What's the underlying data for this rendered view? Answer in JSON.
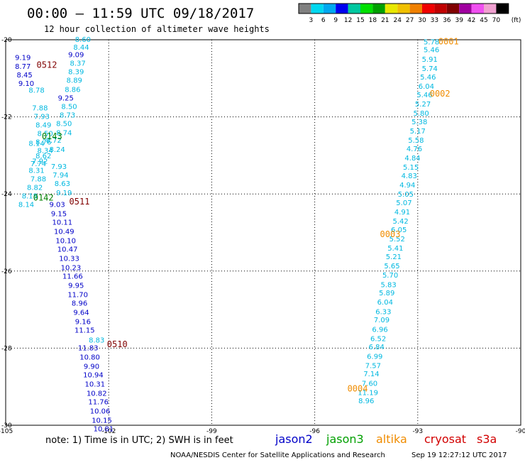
{
  "header": {
    "title": "00:00 – 11:59 UTC 09/18/2017",
    "subtitle": "12 hour collection of altimeter wave heights"
  },
  "colorbar": {
    "unit": "(ft)",
    "labels": [
      "3",
      "6",
      "9",
      "12",
      "15",
      "18",
      "21",
      "24",
      "27",
      "30",
      "33",
      "36",
      "39",
      "42",
      "45",
      "70"
    ],
    "colors": [
      "#808080",
      "#00d8f0",
      "#00a8f0",
      "#0000f0",
      "#00c8a0",
      "#00e000",
      "#00a000",
      "#e8e800",
      "#f0c000",
      "#f08000",
      "#f00000",
      "#c00000",
      "#800000",
      "#a000a0",
      "#f050f0",
      "#f0a0d0",
      "#000000"
    ]
  },
  "footnote": {
    "note": "note:  1) Time is in UTC;  2) SWH is in feet",
    "missions": [
      {
        "name": "jason2",
        "color": "#0000c8"
      },
      {
        "name": "jason3",
        "color": "#00a000"
      },
      {
        "name": "altika",
        "color": "#f08c00"
      },
      {
        "name": "cryosat",
        "color": "#d20000"
      },
      {
        "name": "s3a",
        "color": "#d20000"
      }
    ],
    "credit": "NOAA/NESDIS Center for Satellite Applications and Research",
    "timestamp": "Sep 19 12:27:12 UTC 2017"
  },
  "chart_data": {
    "type": "scatter",
    "xlim": [
      -105,
      -90
    ],
    "ylim": [
      -30,
      -20
    ],
    "x_ticks": [
      "-105",
      "-102",
      "-99",
      "-96",
      "-93",
      "-90"
    ],
    "y_ticks": [
      "-20",
      "-22",
      "-24",
      "-26",
      "-28",
      "-30"
    ],
    "grid": true,
    "passes": [
      {
        "label": "0001",
        "lon": -92.4,
        "lat": -20.05,
        "color": "#f08c00"
      },
      {
        "label": "0002",
        "lon": -92.65,
        "lat": -21.4,
        "color": "#f08c00"
      },
      {
        "label": "0003",
        "lon": -94.1,
        "lat": -25.05,
        "color": "#f08c00"
      },
      {
        "label": "0004",
        "lon": -95.05,
        "lat": -29.05,
        "color": "#f08c00"
      },
      {
        "label": "0512",
        "lon": -104.1,
        "lat": -20.65,
        "color": "#800000"
      },
      {
        "label": "0143",
        "lon": -103.95,
        "lat": -22.5,
        "color": "#008000"
      },
      {
        "label": "0142",
        "lon": -104.2,
        "lat": -24.1,
        "color": "#008000"
      },
      {
        "label": "0511",
        "lon": -103.15,
        "lat": -24.2,
        "color": "#800000"
      },
      {
        "label": "0510",
        "lon": -102.05,
        "lat": -27.9,
        "color": "#800000"
      }
    ],
    "series": [
      {
        "color": "#00b8e0",
        "points": [
          {
            "lon": -92.6,
            "lat": -20.05,
            "v": "5.78"
          },
          {
            "lon": -92.6,
            "lat": -20.25,
            "v": "5.46"
          },
          {
            "lon": -92.65,
            "lat": -20.5,
            "v": "5.91"
          },
          {
            "lon": -92.65,
            "lat": -20.74,
            "v": "5.74"
          },
          {
            "lon": -92.7,
            "lat": -20.96,
            "v": "5.46"
          },
          {
            "lon": -92.75,
            "lat": -21.2,
            "v": "6.04"
          },
          {
            "lon": -92.8,
            "lat": -21.42,
            "v": "5.46"
          },
          {
            "lon": -92.85,
            "lat": -21.66,
            "v": "5.27"
          },
          {
            "lon": -92.9,
            "lat": -21.9,
            "v": "5.80"
          },
          {
            "lon": -92.95,
            "lat": -22.12,
            "v": "5.38"
          },
          {
            "lon": -93.0,
            "lat": -22.36,
            "v": "5.17"
          },
          {
            "lon": -93.05,
            "lat": -22.6,
            "v": "5.58"
          },
          {
            "lon": -93.1,
            "lat": -22.82,
            "v": "4.76"
          },
          {
            "lon": -93.15,
            "lat": -23.06,
            "v": "4.84"
          },
          {
            "lon": -93.2,
            "lat": -23.3,
            "v": "5.15"
          },
          {
            "lon": -93.25,
            "lat": -23.52,
            "v": "4.83"
          },
          {
            "lon": -93.3,
            "lat": -23.76,
            "v": "4.94"
          },
          {
            "lon": -93.35,
            "lat": -24.0,
            "v": "5.05"
          },
          {
            "lon": -93.4,
            "lat": -24.22,
            "v": "5.07"
          },
          {
            "lon": -93.45,
            "lat": -24.46,
            "v": "4.91"
          },
          {
            "lon": -93.5,
            "lat": -24.7,
            "v": "5.42"
          },
          {
            "lon": -93.55,
            "lat": -24.92,
            "v": "6.05"
          },
          {
            "lon": -93.6,
            "lat": -25.16,
            "v": "5.52"
          },
          {
            "lon": -93.65,
            "lat": -25.4,
            "v": "5.41"
          },
          {
            "lon": -93.7,
            "lat": -25.62,
            "v": "5.21"
          },
          {
            "lon": -93.75,
            "lat": -25.86,
            "v": "5.65"
          },
          {
            "lon": -93.8,
            "lat": -26.1,
            "v": "5.70"
          },
          {
            "lon": -93.85,
            "lat": -26.34,
            "v": "5.83"
          },
          {
            "lon": -93.9,
            "lat": -26.56,
            "v": "5.89"
          },
          {
            "lon": -93.95,
            "lat": -26.8,
            "v": "6.04"
          },
          {
            "lon": -94.0,
            "lat": -27.04,
            "v": "6.33"
          },
          {
            "lon": -94.05,
            "lat": -27.26,
            "v": "7.09"
          },
          {
            "lon": -94.1,
            "lat": -27.5,
            "v": "6.96"
          },
          {
            "lon": -94.15,
            "lat": -27.74,
            "v": "6.52"
          },
          {
            "lon": -94.2,
            "lat": -27.96,
            "v": "6.84"
          },
          {
            "lon": -94.25,
            "lat": -28.2,
            "v": "6.99"
          },
          {
            "lon": -94.3,
            "lat": -28.44,
            "v": "7.57"
          },
          {
            "lon": -94.35,
            "lat": -28.66,
            "v": "7.14"
          },
          {
            "lon": -94.4,
            "lat": -28.9,
            "v": "7.60"
          },
          {
            "lon": -94.45,
            "lat": -29.14,
            "v": "11.19"
          },
          {
            "lon": -94.5,
            "lat": -29.36,
            "v": "8.96"
          }
        ]
      },
      {
        "color": "#00b8e0",
        "points": [
          {
            "lon": -102.75,
            "lat": -19.98,
            "v": "8.60"
          },
          {
            "lon": -102.8,
            "lat": -20.18,
            "v": "8.44"
          },
          {
            "lon": -102.9,
            "lat": -20.6,
            "v": "8.37"
          },
          {
            "lon": -102.95,
            "lat": -20.82,
            "v": "8.39"
          },
          {
            "lon": -103.0,
            "lat": -21.04,
            "v": "8.89"
          },
          {
            "lon": -103.05,
            "lat": -21.28,
            "v": "8.86"
          },
          {
            "lon": -103.15,
            "lat": -21.72,
            "v": "8.50"
          },
          {
            "lon": -103.2,
            "lat": -21.94,
            "v": "8.73"
          },
          {
            "lon": -103.3,
            "lat": -22.16,
            "v": "8.50"
          },
          {
            "lon": -103.3,
            "lat": -22.4,
            "v": "8.74"
          },
          {
            "lon": -103.6,
            "lat": -22.6,
            "v": "8.72"
          },
          {
            "lon": -103.5,
            "lat": -22.84,
            "v": "8.24"
          },
          {
            "lon": -103.45,
            "lat": -23.28,
            "v": "7.93"
          },
          {
            "lon": -103.4,
            "lat": -23.5,
            "v": "7.94"
          },
          {
            "lon": -103.35,
            "lat": -23.72,
            "v": "8.63"
          },
          {
            "lon": -103.3,
            "lat": -23.96,
            "v": "9.19"
          }
        ]
      },
      {
        "color": "#00b8e0",
        "points": [
          {
            "lon": -104.1,
            "lat": -21.3,
            "v": "8.78"
          },
          {
            "lon": -104.0,
            "lat": -21.76,
            "v": "7.88"
          },
          {
            "lon": -103.95,
            "lat": -21.98,
            "v": "7.93"
          },
          {
            "lon": -103.9,
            "lat": -22.2,
            "v": "8.49"
          },
          {
            "lon": -103.85,
            "lat": -22.42,
            "v": "8.50"
          },
          {
            "lon": -103.9,
            "lat": -22.64,
            "v": "8.76"
          },
          {
            "lon": -103.85,
            "lat": -22.86,
            "v": "8.34"
          },
          {
            "lon": -103.9,
            "lat": -23.0,
            "v": "8.62"
          },
          {
            "lon": -104.0,
            "lat": -23.14,
            "v": "7.92"
          },
          {
            "lon": -104.05,
            "lat": -23.2,
            "v": "7.74"
          },
          {
            "lon": -104.1,
            "lat": -23.38,
            "v": "8.31"
          },
          {
            "lon": -104.05,
            "lat": -23.6,
            "v": "7.88"
          },
          {
            "lon": -104.15,
            "lat": -23.82,
            "v": "8.82"
          },
          {
            "lon": -104.3,
            "lat": -24.04,
            "v": "8.18"
          },
          {
            "lon": -104.4,
            "lat": -24.26,
            "v": "8.14"
          },
          {
            "lon": -104.1,
            "lat": -22.68,
            "v": "8.14"
          }
        ]
      },
      {
        "color": "#00b8e0",
        "points": [
          {
            "lon": -102.35,
            "lat": -27.78,
            "v": "8.83"
          }
        ]
      },
      {
        "color": "#0000c8",
        "points": [
          {
            "lon": -102.95,
            "lat": -20.38,
            "v": "9.09"
          },
          {
            "lon": -103.25,
            "lat": -21.5,
            "v": "9.25"
          },
          {
            "lon": -104.5,
            "lat": -20.45,
            "v": "9.19"
          },
          {
            "lon": -104.5,
            "lat": -20.68,
            "v": "8.77"
          },
          {
            "lon": -104.45,
            "lat": -20.9,
            "v": "8.45"
          },
          {
            "lon": -104.4,
            "lat": -21.12,
            "v": "9.10"
          },
          {
            "lon": -103.5,
            "lat": -24.26,
            "v": "9.03"
          },
          {
            "lon": -103.45,
            "lat": -24.5,
            "v": "9.15"
          },
          {
            "lon": -103.35,
            "lat": -24.72,
            "v": "10.11"
          },
          {
            "lon": -103.3,
            "lat": -24.96,
            "v": "10.49"
          },
          {
            "lon": -103.25,
            "lat": -25.2,
            "v": "10.10"
          },
          {
            "lon": -103.2,
            "lat": -25.42,
            "v": "10.47"
          },
          {
            "lon": -103.15,
            "lat": -25.66,
            "v": "10.33"
          },
          {
            "lon": -103.1,
            "lat": -25.9,
            "v": "10.23"
          },
          {
            "lon": -103.05,
            "lat": -26.12,
            "v": "11.66"
          },
          {
            "lon": -102.95,
            "lat": -26.36,
            "v": "9.95"
          },
          {
            "lon": -102.9,
            "lat": -26.6,
            "v": "11.70"
          },
          {
            "lon": -102.85,
            "lat": -26.82,
            "v": "8.96"
          },
          {
            "lon": -102.8,
            "lat": -27.06,
            "v": "9.64"
          },
          {
            "lon": -102.75,
            "lat": -27.3,
            "v": "9.16"
          },
          {
            "lon": -102.7,
            "lat": -27.52,
            "v": "11.15"
          },
          {
            "lon": -102.6,
            "lat": -27.98,
            "v": "11.83"
          },
          {
            "lon": -102.55,
            "lat": -28.22,
            "v": "10.80"
          },
          {
            "lon": -102.5,
            "lat": -28.46,
            "v": "9.90"
          },
          {
            "lon": -102.45,
            "lat": -28.68,
            "v": "10.94"
          },
          {
            "lon": -102.4,
            "lat": -28.92,
            "v": "10.31"
          },
          {
            "lon": -102.35,
            "lat": -29.16,
            "v": "10.82"
          },
          {
            "lon": -102.3,
            "lat": -29.38,
            "v": "11.76"
          },
          {
            "lon": -102.25,
            "lat": -29.62,
            "v": "10.06"
          },
          {
            "lon": -102.2,
            "lat": -29.86,
            "v": "10.15"
          },
          {
            "lon": -102.15,
            "lat": -30.08,
            "v": "10.81"
          }
        ]
      }
    ]
  }
}
